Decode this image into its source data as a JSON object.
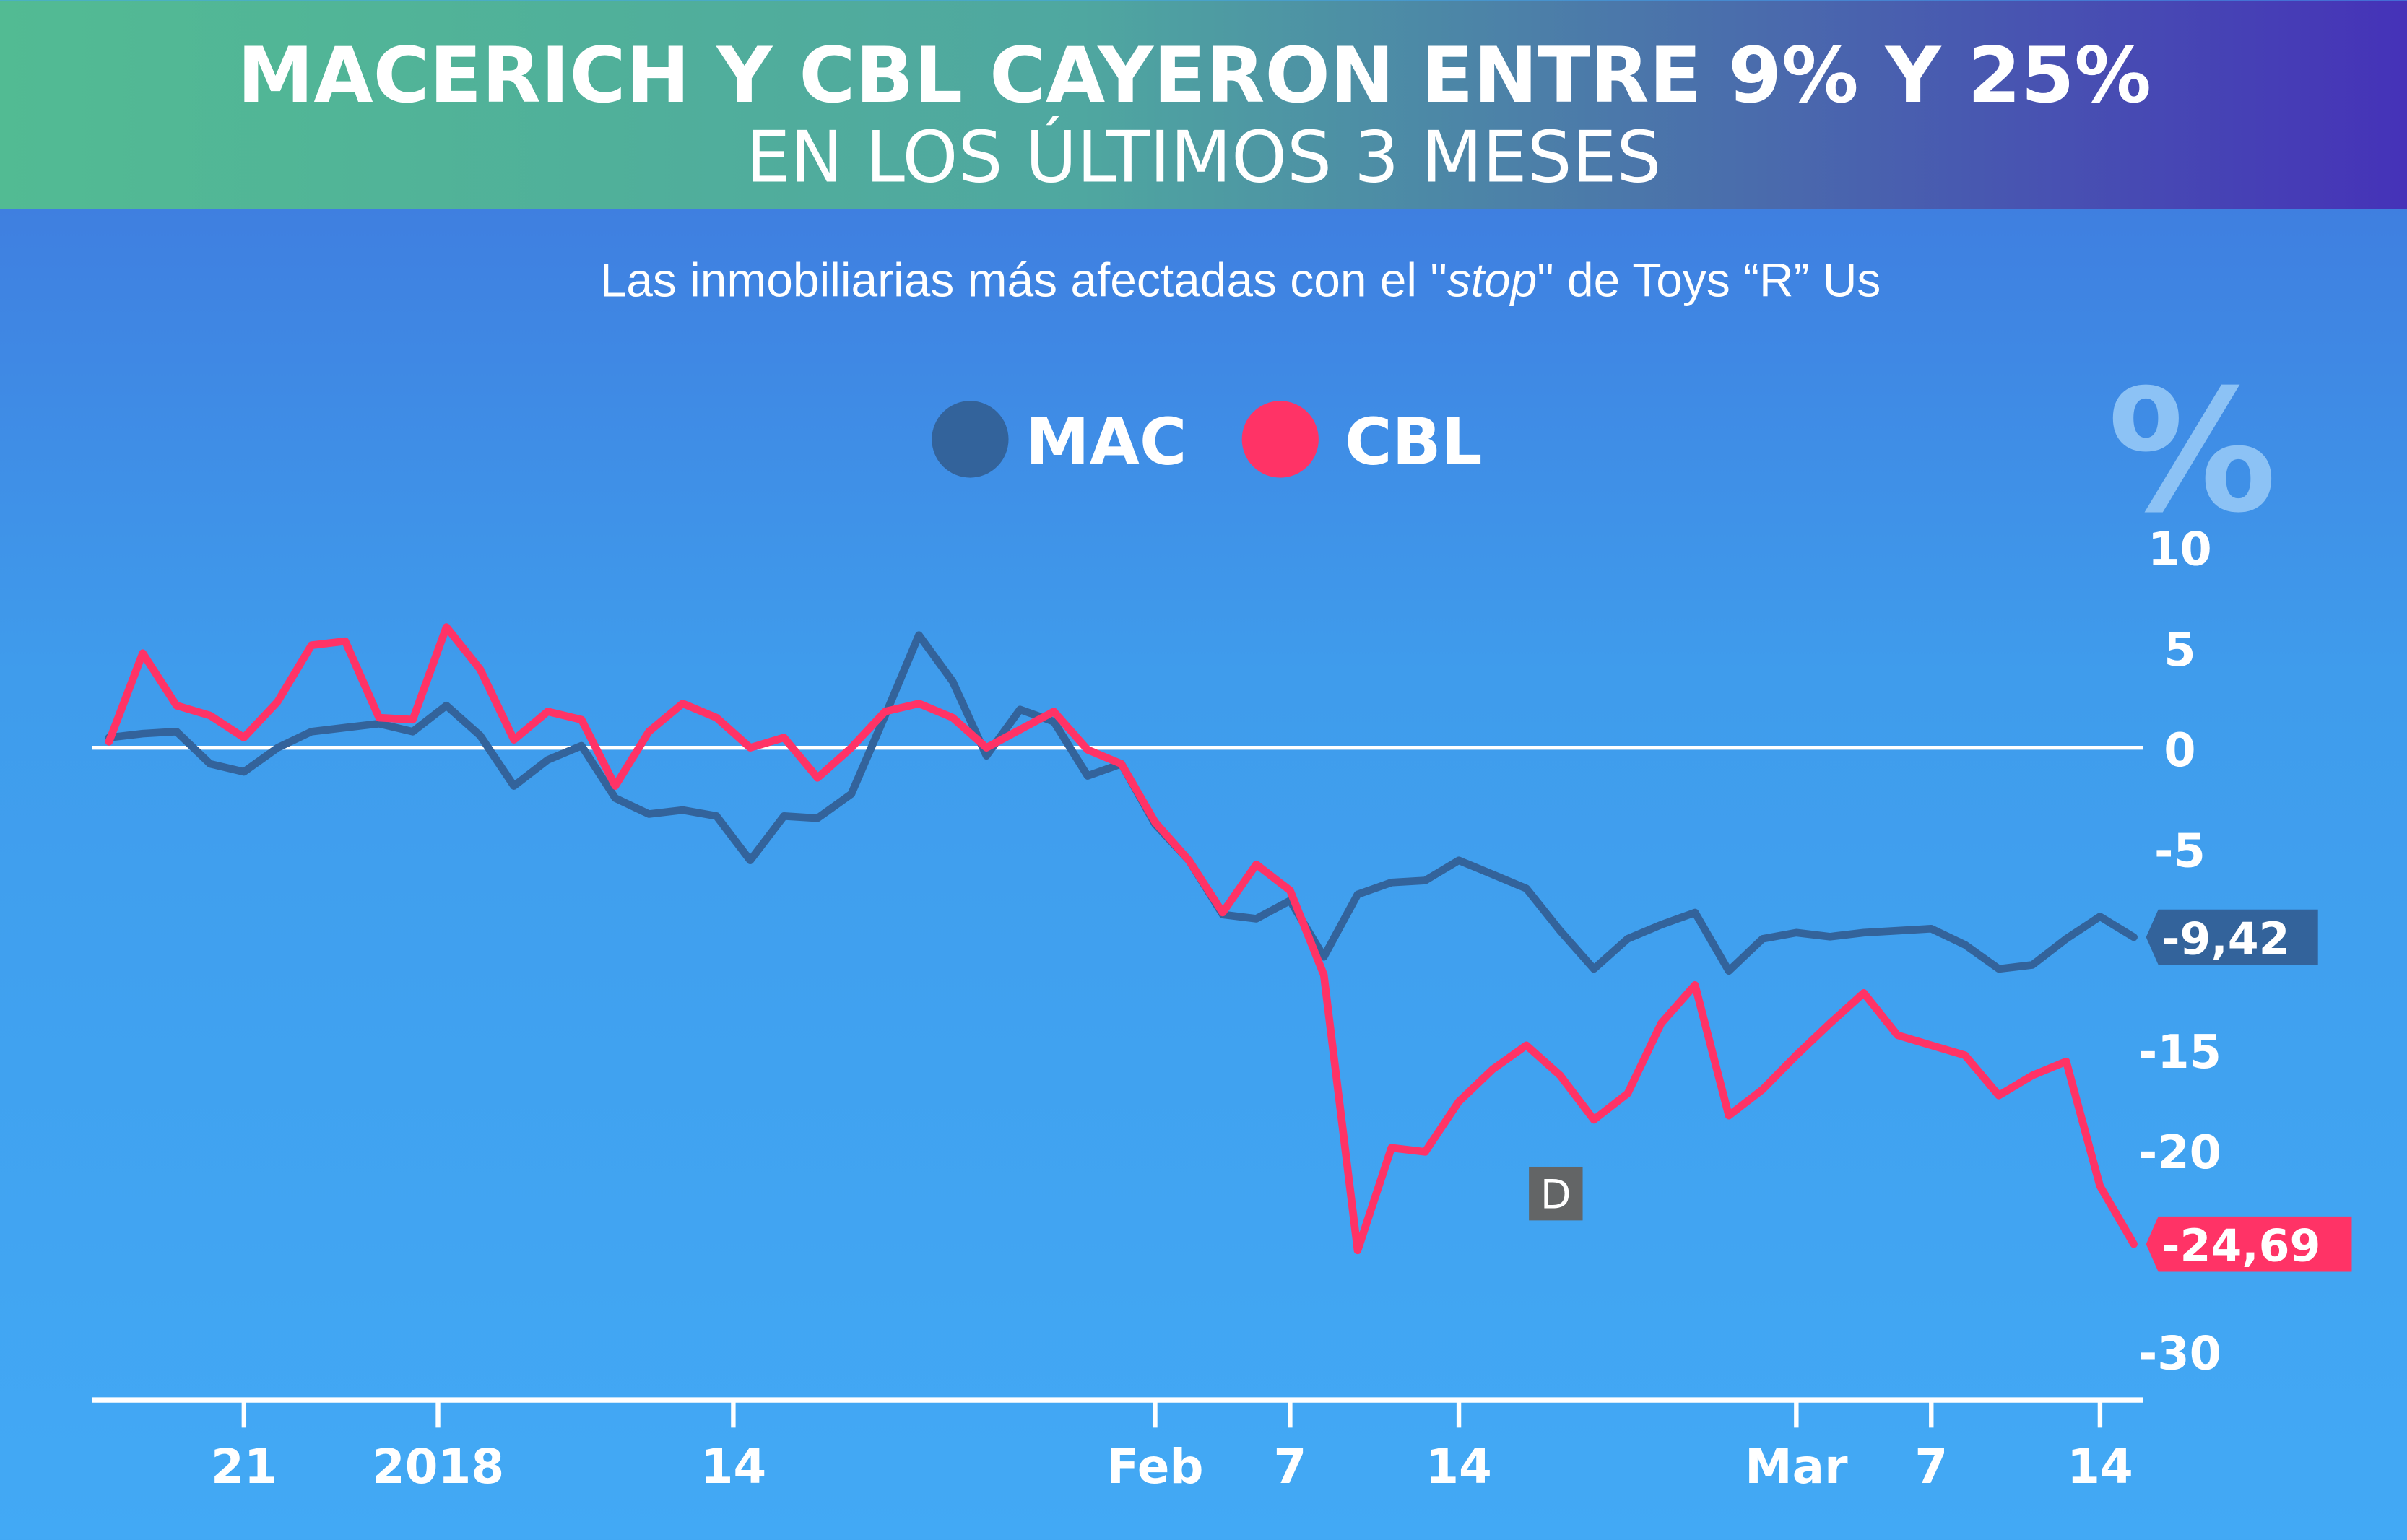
{
  "header": {
    "title_line1": "MACERICH Y CBL CAYERON ENTRE 9% Y 25%",
    "title_line2": "EN LOS ÚLTIMOS 3 MESES",
    "subtitle_pre": "Las inmobiliarias más afectadas con el \"",
    "subtitle_italic": "stop",
    "subtitle_post": "\" de  Toys “R” Us"
  },
  "colors": {
    "mac": "#33639b",
    "cbl": "#ff3366",
    "background": "#42a7f3",
    "header_start": "#52bb93",
    "header_end": "#4532b8"
  },
  "watermark": "D",
  "chart_data": {
    "type": "line",
    "unit_label": "%",
    "legend": [
      {
        "name": "MAC",
        "color": "#33639b"
      },
      {
        "name": "CBL",
        "color": "#ff3366"
      }
    ],
    "legend_placement": "top-center",
    "ylim": [
      -30,
      10
    ],
    "yticks": [
      10,
      5,
      0,
      -5,
      -15,
      -20,
      -30
    ],
    "xticks": [
      {
        "label": "21",
        "date": "2017-12-21"
      },
      {
        "label": "2018",
        "date": "2018-01-01"
      },
      {
        "label": "14",
        "date": "2018-01-14"
      },
      {
        "label": "Feb",
        "date": "2018-02-01"
      },
      {
        "label": "7",
        "date": "2018-02-07"
      },
      {
        "label": "14",
        "date": "2018-02-14"
      },
      {
        "label": "Mar",
        "date": "2018-03-01"
      },
      {
        "label": "7",
        "date": "2018-03-07"
      },
      {
        "label": "14",
        "date": "2018-03-14"
      }
    ],
    "dates": [
      "2017-12-15",
      "2017-12-18",
      "2017-12-19",
      "2017-12-20",
      "2017-12-21",
      "2017-12-22",
      "2017-12-26",
      "2017-12-27",
      "2017-12-28",
      "2017-12-29",
      "2018-01-02",
      "2018-01-03",
      "2018-01-04",
      "2018-01-05",
      "2018-01-08",
      "2018-01-09",
      "2018-01-10",
      "2018-01-11",
      "2018-01-12",
      "2018-01-16",
      "2018-01-17",
      "2018-01-18",
      "2018-01-19",
      "2018-01-22",
      "2018-01-23",
      "2018-01-24",
      "2018-01-25",
      "2018-01-26",
      "2018-01-29",
      "2018-01-30",
      "2018-01-31",
      "2018-02-01",
      "2018-02-02",
      "2018-02-05",
      "2018-02-06",
      "2018-02-07",
      "2018-02-08",
      "2018-02-09",
      "2018-02-12",
      "2018-02-13",
      "2018-02-14",
      "2018-02-15",
      "2018-02-16",
      "2018-02-20",
      "2018-02-21",
      "2018-02-22",
      "2018-02-23",
      "2018-02-26",
      "2018-02-27",
      "2018-02-28",
      "2018-03-01",
      "2018-03-02",
      "2018-03-05",
      "2018-03-06",
      "2018-03-07",
      "2018-03-08",
      "2018-03-09",
      "2018-03-12",
      "2018-03-13",
      "2018-03-14",
      "2018-03-15"
    ],
    "series": [
      {
        "name": "MAC",
        "last_label": "-9,42",
        "values": [
          0.5,
          0.7,
          0.8,
          -0.8,
          -1.2,
          0,
          0.8,
          1.0,
          1.2,
          0.8,
          2.1,
          0.6,
          -1.9,
          -0.6,
          0.1,
          -2.5,
          -3.3,
          -3.1,
          -3.4,
          -5.6,
          -3.4,
          -3.5,
          -2.3,
          1.6,
          5.6,
          3.3,
          -0.4,
          1.9,
          1.3,
          -1.4,
          -0.8,
          -3.8,
          -5.6,
          -8.3,
          -8.5,
          -7.6,
          -10.4,
          -7.3,
          -6.7,
          -6.6,
          -5.6,
          -6.3,
          -7.0,
          -9.1,
          -11.0,
          -9.5,
          -8.8,
          -8.2,
          -11.1,
          -9.5,
          -9.2,
          -9.4,
          -9.2,
          -9.1,
          -9.0,
          -9.8,
          -11.0,
          -10.8,
          -9.5,
          -8.4,
          -9.42
        ]
      },
      {
        "name": "CBL",
        "last_label": "-24,69",
        "values": [
          0.3,
          4.7,
          2.1,
          1.6,
          0.5,
          2.3,
          5.1,
          5.3,
          1.5,
          1.4,
          6.0,
          3.9,
          0.4,
          1.8,
          1.4,
          -1.9,
          0.8,
          2.2,
          1.5,
          0.0,
          0.5,
          -1.5,
          0.0,
          1.8,
          2.2,
          1.5,
          0.0,
          0.9,
          1.8,
          -0.1,
          -0.8,
          -3.7,
          -5.6,
          -8.2,
          -5.8,
          -7.1,
          -11.3,
          -25.0,
          -19.9,
          -20.1,
          -17.6,
          -16.0,
          -14.8,
          -16.3,
          -18.5,
          -17.2,
          -13.7,
          -11.8,
          -18.3,
          -17.0,
          -15.3,
          -13.7,
          -12.2,
          -14.3,
          -14.8,
          -15.3,
          -17.3,
          -16.3,
          -15.6,
          -21.8,
          -24.69
        ]
      }
    ]
  }
}
